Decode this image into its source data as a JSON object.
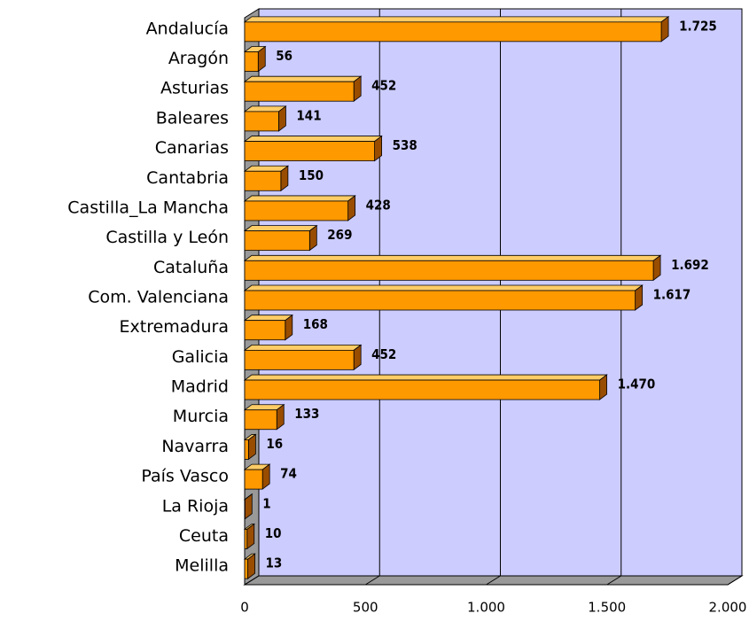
{
  "chart_data": {
    "type": "bar",
    "orientation": "horizontal",
    "categories": [
      "Andalucía",
      "Aragón",
      "Asturias",
      "Baleares",
      "Canarias",
      "Cantabria",
      "Castilla_La Mancha",
      "Castilla y León",
      "Cataluña",
      "Com. Valenciana",
      "Extremadura",
      "Galicia",
      "Madrid",
      "Murcia",
      "Navarra",
      "País Vasco",
      "La Rioja",
      "Ceuta",
      "Melilla"
    ],
    "values": [
      1725,
      56,
      452,
      141,
      538,
      150,
      428,
      269,
      1692,
      1617,
      168,
      452,
      1470,
      133,
      16,
      74,
      1,
      10,
      13
    ],
    "value_labels": [
      "1.725",
      "56",
      "452",
      "141",
      "538",
      "150",
      "428",
      "269",
      "1.692",
      "1.617",
      "168",
      "452",
      "1.470",
      "133",
      "16",
      "74",
      "1",
      "10",
      "13"
    ],
    "color": "#ff9900",
    "xlim": [
      0,
      2000
    ],
    "xticks": [
      0,
      500,
      {
        "value": 1000,
        "label": "1.000"
      },
      {
        "value": 1500,
        "label": "1.500"
      },
      {
        "value": 2000,
        "label": "2.000"
      }
    ],
    "grid": true,
    "wall_color": "#ccccff"
  }
}
